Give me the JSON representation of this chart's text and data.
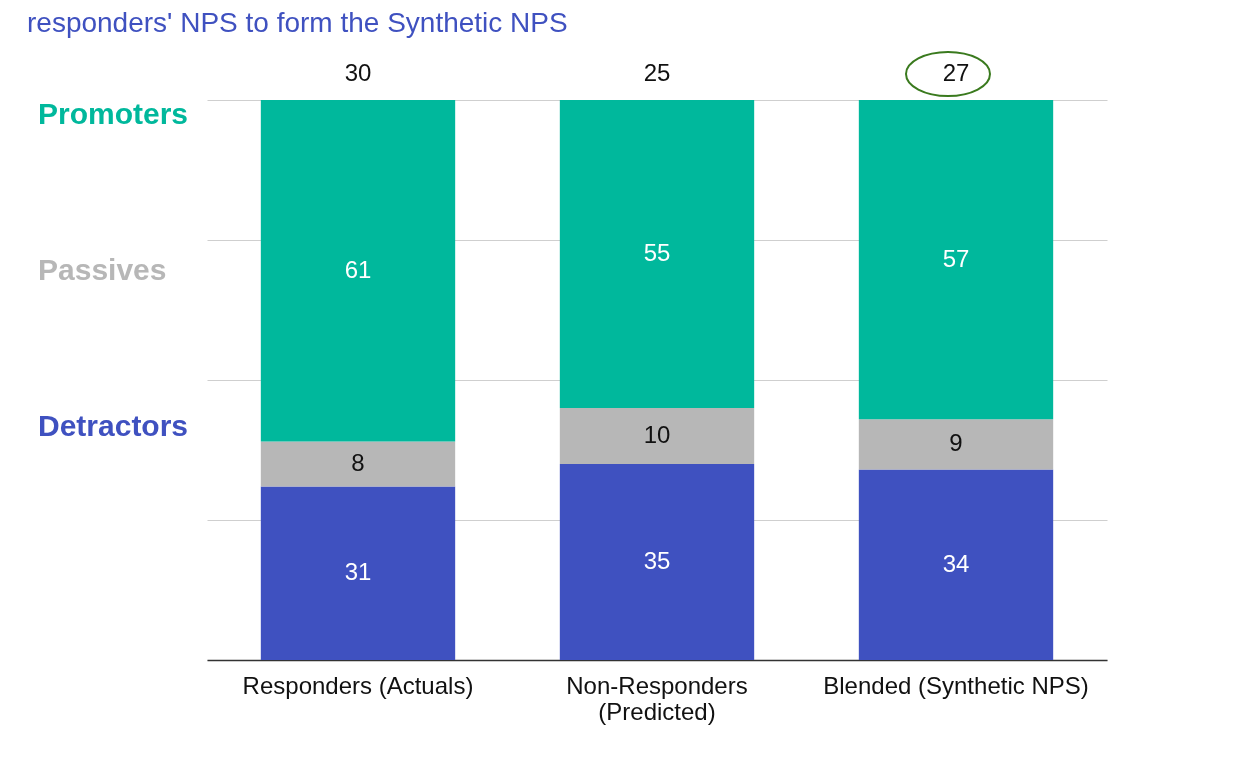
{
  "chart_data": {
    "type": "bar",
    "title": "responders' NPS to form the Synthetic NPS",
    "stacked": true,
    "categories": [
      "Responders (Actuals)",
      "Non-Responders (Predicted)",
      "Blended (Synthetic NPS)"
    ],
    "series": [
      {
        "name": "Detractors",
        "color": "#3f51c0",
        "values": [
          31,
          35,
          34
        ]
      },
      {
        "name": "Passives",
        "color": "#b7b7b7",
        "values": [
          8,
          10,
          9
        ]
      },
      {
        "name": "Promoters",
        "color": "#00b89c",
        "values": [
          61,
          55,
          57
        ]
      }
    ],
    "ylim": [
      0,
      100
    ],
    "yticks": [
      {
        "value": 0,
        "label": null
      },
      {
        "value": 25,
        "label": null
      },
      {
        "value": 50,
        "label": null
      },
      {
        "value": 75,
        "label": null
      },
      {
        "value": 100,
        "label": null
      }
    ],
    "tick_labels": "x",
    "grid": "y",
    "legend": "left",
    "data_labels": true,
    "annotations": [
      {
        "text": "30",
        "x": "Responders (Actuals)",
        "y": 100
      },
      {
        "text": "25",
        "x": "Non-Responders (Predicted)",
        "y": 100
      },
      {
        "text": "27",
        "x": "Blended (Synthetic NPS)",
        "y": 100
      }
    ]
  }
}
